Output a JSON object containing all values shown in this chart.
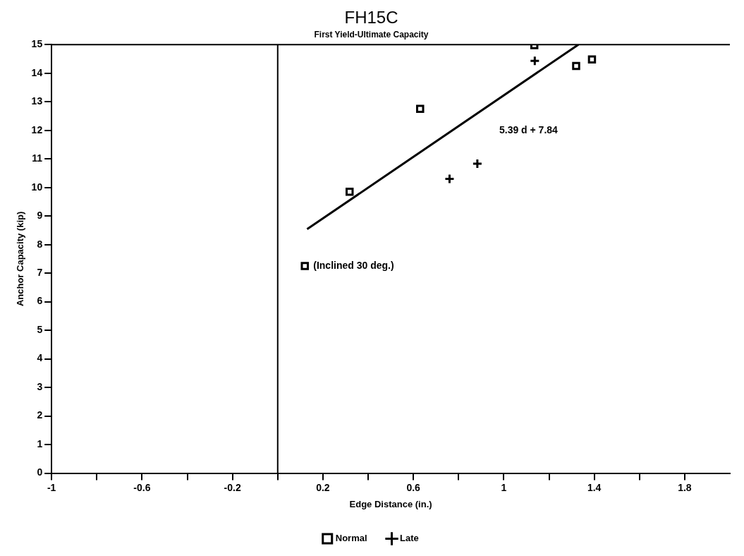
{
  "chart_data": {
    "type": "scatter",
    "title": "FH15C",
    "subtitle": "First Yield-Ultimate Capacity",
    "xlabel": "Edge Distance (in.)",
    "ylabel": "Anchor Capacity (kip)",
    "xlim": [
      -1,
      2
    ],
    "xticks": [
      -1,
      {
        "value": -0.8,
        "label": null
      },
      -0.6,
      {
        "value": -0.4,
        "label": null
      },
      -0.2,
      {
        "value": 0,
        "label": null
      },
      0.2,
      {
        "value": 0.4,
        "label": null
      },
      0.6,
      {
        "value": 0.8,
        "label": null
      },
      1,
      {
        "value": 1.2,
        "label": null
      },
      1.4,
      {
        "value": 1.6,
        "label": null
      },
      1.8
    ],
    "ylim": [
      0,
      15
    ],
    "yticks": [
      0,
      1,
      2,
      3,
      4,
      5,
      6,
      7,
      8,
      9,
      10,
      11,
      12,
      13,
      14,
      15
    ],
    "legend": "bottom",
    "ref_lines": [
      {
        "axis": "x",
        "value": 0,
        "color": "#000000"
      }
    ],
    "annotations": [
      {
        "text": "(Inclined 30 deg.)",
        "x": 0.12,
        "y": 7.25
      },
      "5.39 d + 7.84"
    ],
    "series": [
      {
        "name": "Normal",
        "marker": "square",
        "color": "#000000",
        "x": [
          1.135,
          1.32,
          1.39,
          0.63,
          0.318,
          0.12
        ],
        "values": [
          14.98,
          14.25,
          14.48,
          12.75,
          9.85,
          7.25
        ]
      },
      {
        "name": "Late",
        "marker": "cross",
        "color": "#000000",
        "x": [
          1.137,
          0.76,
          0.883
        ],
        "values": [
          14.43,
          10.3,
          10.83
        ]
      },
      {
        "type": "line",
        "marker": "none",
        "line_style": "solid",
        "color": "#000000",
        "x": [
          0.13,
          1.33
        ],
        "values": [
          8.54,
          15.0
        ]
      }
    ]
  }
}
